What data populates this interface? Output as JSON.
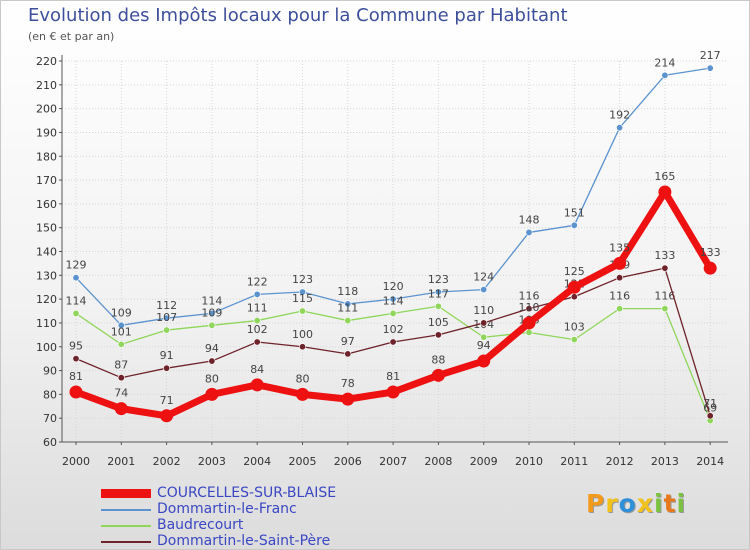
{
  "chart_data": {
    "type": "line",
    "title": "Evolution des Impôts locaux pour la Commune par Habitant",
    "subtitle": "(en € et par an)",
    "xlabel": "",
    "ylabel": "",
    "ylim": [
      60,
      220
    ],
    "yticks": [
      60,
      70,
      80,
      90,
      100,
      110,
      120,
      130,
      140,
      150,
      160,
      170,
      180,
      190,
      200,
      210,
      220
    ],
    "categories": [
      "2000",
      "2001",
      "2002",
      "2003",
      "2004",
      "2005",
      "2006",
      "2007",
      "2008",
      "2009",
      "2010",
      "2011",
      "2012",
      "2013",
      "2014"
    ],
    "grid": true,
    "series": [
      {
        "name": "Dommartin-le-Franc",
        "color": "#5b93cf",
        "values": [
          129,
          109,
          112,
          114,
          122,
          123,
          118,
          120,
          123,
          124,
          148,
          151,
          192,
          214,
          217
        ]
      },
      {
        "name": "Baudrecourt",
        "color": "#8fd65a",
        "values": [
          114,
          101,
          107,
          109,
          111,
          115,
          111,
          114,
          117,
          104,
          106,
          103,
          116,
          116,
          69
        ]
      },
      {
        "name": "Dommartin-le-Saint-Père",
        "color": "#6e2229",
        "values": [
          95,
          87,
          91,
          94,
          102,
          100,
          97,
          102,
          105,
          110,
          116,
          121,
          129,
          133,
          71
        ]
      },
      {
        "name": "COURCELLES-SUR-BLAISE",
        "color": "#ee1111",
        "values": [
          81,
          74,
          71,
          80,
          84,
          80,
          78,
          81,
          88,
          94,
          110,
          125,
          135,
          165,
          133
        ]
      }
    ],
    "legend": [
      "COURCELLES-SUR-BLAISE",
      "Dommartin-le-Franc",
      "Baudrecourt",
      "Dommartin-le-Saint-Père"
    ]
  },
  "logo": {
    "letters": [
      "P",
      "r",
      "o",
      "x",
      "i",
      "t",
      "i"
    ],
    "colors": [
      "#f29a1c",
      "#f2c21c",
      "#2f8fd8",
      "#f2c21c",
      "#7cc242",
      "#e8781c",
      "#7cc242"
    ]
  }
}
